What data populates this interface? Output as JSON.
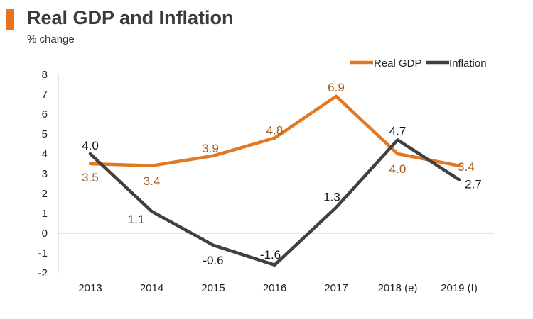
{
  "header": {
    "title": "Real GDP and Inflation",
    "subtitle": "% change"
  },
  "colors": {
    "gdp": "#e0791f",
    "gdp_label": "#a65a16",
    "inflation": "#404040",
    "accent_bar": "#e8731c"
  },
  "chart_data": {
    "type": "line",
    "title": "Real GDP and Inflation",
    "ylabel": "% change",
    "xlabel": "",
    "categories": [
      "2013",
      "2014",
      "2015",
      "2016",
      "2017",
      "2018 (e)",
      "2019 (f)"
    ],
    "ylim": [
      -2,
      8
    ],
    "yticks": [
      "8",
      "7",
      "6",
      "5",
      "4",
      "3",
      "2",
      "1",
      "0",
      "-1",
      "-2"
    ],
    "legend_position": "top-right",
    "series": [
      {
        "name": "Real GDP",
        "values": [
          3.5,
          3.4,
          3.9,
          4.8,
          6.9,
          4.0,
          3.4
        ],
        "labels": [
          "3.5",
          "3.4",
          "3.9",
          "4.8",
          "6.9",
          "4.0",
          "3.4"
        ]
      },
      {
        "name": "Inflation",
        "values": [
          4.0,
          1.1,
          -0.6,
          -1.6,
          1.3,
          4.7,
          2.7
        ],
        "labels": [
          "4.0",
          "1.1",
          "-0.6",
          "-1.6",
          "1.3",
          "4.7",
          "2.7"
        ]
      }
    ]
  }
}
